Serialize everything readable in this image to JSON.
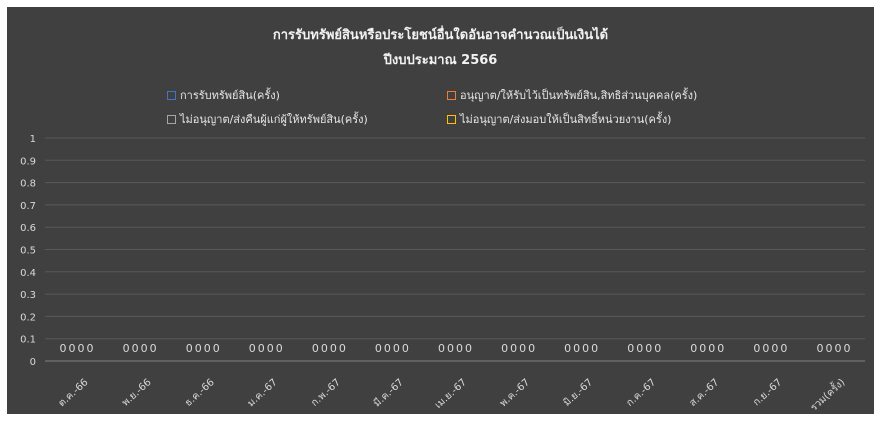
{
  "chart_data": {
    "type": "bar",
    "title": "การรับทรัพย์สินหรือประโยชน์อื่นใดอันอาจคำนวณเป็นเงินได้",
    "subtitle": "ปีงบประมาณ 2566",
    "legend_position": "top",
    "grid": true,
    "ylim": [
      0,
      1
    ],
    "yticks": [
      "0",
      "0.1",
      "0.2",
      "0.3",
      "0.4",
      "0.5",
      "0.6",
      "0.7",
      "0.8",
      "0.9",
      "1"
    ],
    "categories": [
      "ต.ค.-66",
      "พ.ย.-66",
      "ธ.ค.-66",
      "ม.ค.-67",
      "ก.พ.-67",
      "มี.ค.-67",
      "เม.ย.-67",
      "พ.ค.-67",
      "มิ.ย.-67",
      "ก.ค.-67",
      "ส.ค.-67",
      "ก.ย.-67",
      "รวม(ครั้ง)"
    ],
    "series": [
      {
        "name": "การรับทรัพย์สิน(ครั้ง)",
        "color": "#4472c4",
        "values": [
          0,
          0,
          0,
          0,
          0,
          0,
          0,
          0,
          0,
          0,
          0,
          0,
          0
        ]
      },
      {
        "name": "อนุญาต/ให้รับไว้เป็นทรัพย์สิน,สิทธิส่วนบุคคล(ครั้ง)",
        "color": "#ed7d31",
        "values": [
          0,
          0,
          0,
          0,
          0,
          0,
          0,
          0,
          0,
          0,
          0,
          0,
          0
        ]
      },
      {
        "name": "ไม่อนุญาต/ส่งคืนผู้แก่ผู้ให้ทรัพย์สิน(ครั้ง)",
        "color": "#a5a5a5",
        "values": [
          0,
          0,
          0,
          0,
          0,
          0,
          0,
          0,
          0,
          0,
          0,
          0,
          0
        ]
      },
      {
        "name": "ไม่อนุญาต/ส่งมอบให้เป็นสิทธิ์หน่วยงาน(ครั้ง)",
        "color": "#ffc000",
        "values": [
          0,
          0,
          0,
          0,
          0,
          0,
          0,
          0,
          0,
          0,
          0,
          0,
          0
        ]
      }
    ]
  }
}
